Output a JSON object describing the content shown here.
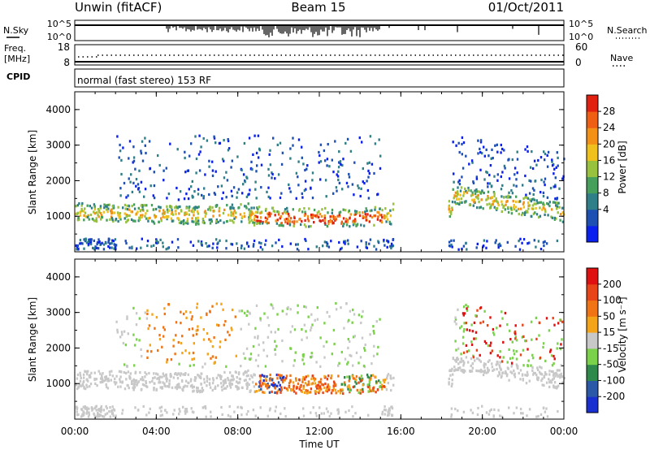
{
  "header": {
    "station": "Unwin (fitACF)",
    "beam": "Beam 15",
    "date": "01/Oct/2011"
  },
  "param_panels": {
    "nsky_label": "N.Sky",
    "nsearch_label": "N.Search",
    "freq_label_1": "Freq.",
    "freq_label_2": "[MHz]",
    "nave_label": "Nave",
    "cpid_label": "CPID",
    "noise_ticks_left": [
      "10^5",
      "10^0"
    ],
    "noise_ticks_right": [
      "10^5",
      "10^0"
    ],
    "freq_ticks": [
      "18",
      "8"
    ],
    "nave_ticks": [
      "60",
      "0"
    ],
    "cpid_text": "normal (fast stereo) 153 RF"
  },
  "chart_data": [
    {
      "type": "heatmap",
      "name": "power",
      "ylabel": "Slant Range [km]",
      "xlabel": "",
      "ylim": [
        0,
        4500
      ],
      "y_ticks": [
        "1000",
        "2000",
        "3000",
        "4000"
      ],
      "x_ticks": [
        "00:00",
        "04:00",
        "08:00",
        "12:00",
        "16:00",
        "20:00",
        "00:00"
      ],
      "colorbar_label": "Power [dB]",
      "colorbar_ticks": [
        "28",
        "24",
        "20",
        "16",
        "12",
        "8",
        "4"
      ],
      "colorbar_colors": [
        "#0a20ee",
        "#1e50b4",
        "#2e7f88",
        "#46a05c",
        "#98c23e",
        "#f0c01c",
        "#f39016",
        "#ee5f14",
        "#e12010"
      ]
    },
    {
      "type": "heatmap",
      "name": "velocity",
      "ylabel": "Slant Range [km]",
      "xlabel": "Time UT",
      "ylim": [
        0,
        4500
      ],
      "y_ticks": [
        "1000",
        "2000",
        "3000",
        "4000"
      ],
      "x_ticks": [
        "00:00",
        "04:00",
        "08:00",
        "12:00",
        "16:00",
        "20:00",
        "00:00"
      ],
      "colorbar_label": "Velocity [m s⁻¹]",
      "colorbar_ticks": [
        "200",
        "100",
        "50",
        "15",
        "-15",
        "-50",
        "-100",
        "-200"
      ],
      "colorbar_colors": [
        "#1a2fd0",
        "#2c58a8",
        "#2e8a4a",
        "#7ad24a",
        "#c8c8c8",
        "#f4a418",
        "#f07414",
        "#e84418",
        "#e01010"
      ]
    }
  ]
}
